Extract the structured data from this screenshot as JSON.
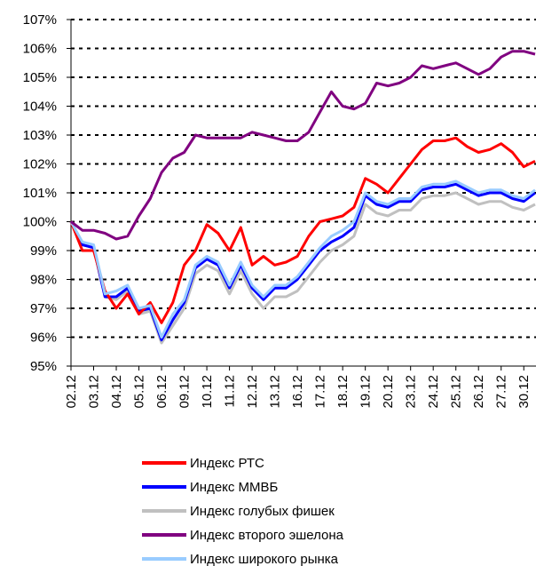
{
  "chart_data": {
    "type": "line",
    "categories": [
      "02.12",
      null,
      "03.12",
      null,
      "04.12",
      null,
      "05.12",
      null,
      "06.12",
      null,
      "09.12",
      null,
      "10.12",
      null,
      "11.12",
      null,
      "12.12",
      null,
      "13.12",
      null,
      "16.12",
      null,
      "17.12",
      null,
      "18.12",
      null,
      "19.12",
      null,
      "20.12",
      null,
      "23.12",
      null,
      "24.12",
      null,
      "25.12",
      null,
      "26.12",
      null,
      "27.12",
      null,
      "30.12",
      null
    ],
    "series": [
      {
        "name": "Индекс РТС",
        "color": "#ff0000",
        "values": [
          100,
          99.0,
          99.0,
          97.6,
          97.0,
          97.5,
          96.8,
          97.2,
          96.5,
          97.2,
          98.5,
          99.0,
          99.9,
          99.6,
          99.0,
          99.8,
          98.5,
          98.8,
          98.5,
          98.6,
          98.8,
          99.5,
          100.0,
          100.1,
          100.2,
          100.5,
          101.5,
          101.3,
          101.0,
          101.5,
          102.0,
          102.5,
          102.8,
          102.8,
          102.9,
          102.6,
          102.4,
          102.5,
          102.7,
          102.4,
          101.9,
          102.1
        ]
      },
      {
        "name": "Индекс ММВБ",
        "color": "#0000ff",
        "values": [
          100,
          99.2,
          99.1,
          97.4,
          97.4,
          97.7,
          96.9,
          97.0,
          95.9,
          96.6,
          97.2,
          98.4,
          98.7,
          98.5,
          97.7,
          98.5,
          97.7,
          97.3,
          97.7,
          97.7,
          98.0,
          98.5,
          99.0,
          99.3,
          99.5,
          99.8,
          100.9,
          100.6,
          100.5,
          100.7,
          100.7,
          101.1,
          101.2,
          101.2,
          101.3,
          101.1,
          100.9,
          101.0,
          101.0,
          100.8,
          100.7,
          101.0
        ]
      },
      {
        "name": "Индекс голубых фишек",
        "color": "#c0c0c0",
        "values": [
          100,
          99.2,
          99.1,
          97.4,
          97.3,
          97.6,
          96.8,
          96.9,
          95.8,
          96.4,
          97.0,
          98.2,
          98.5,
          98.3,
          97.5,
          98.3,
          97.5,
          97.0,
          97.4,
          97.4,
          97.6,
          98.1,
          98.6,
          99.0,
          99.2,
          99.5,
          100.6,
          100.3,
          100.2,
          100.4,
          100.4,
          100.8,
          100.9,
          100.9,
          101.0,
          100.8,
          100.6,
          100.7,
          100.7,
          100.5,
          100.4,
          100.6
        ]
      },
      {
        "name": "Индекс второго эшелона",
        "color": "#800080",
        "values": [
          100,
          99.7,
          99.7,
          99.6,
          99.4,
          99.5,
          100.2,
          100.8,
          101.7,
          102.2,
          102.4,
          103.0,
          102.9,
          102.9,
          102.9,
          102.9,
          103.1,
          103.0,
          102.9,
          102.8,
          102.8,
          103.1,
          103.8,
          104.5,
          104.0,
          103.9,
          104.1,
          104.8,
          104.7,
          104.8,
          105.0,
          105.4,
          105.3,
          105.4,
          105.5,
          105.3,
          105.1,
          105.3,
          105.7,
          105.9,
          105.9,
          105.8
        ]
      },
      {
        "name": "Индекс широкого рынка",
        "color": "#99ccff",
        "values": [
          100,
          99.3,
          99.2,
          97.5,
          97.6,
          97.8,
          97.0,
          97.1,
          96.0,
          96.8,
          97.3,
          98.5,
          98.8,
          98.6,
          97.8,
          98.6,
          97.8,
          97.4,
          97.8,
          97.8,
          98.1,
          98.6,
          99.1,
          99.5,
          99.7,
          100.0,
          101.0,
          100.7,
          100.6,
          100.8,
          100.8,
          101.2,
          101.3,
          101.3,
          101.4,
          101.2,
          101.0,
          101.1,
          101.1,
          100.9,
          100.8,
          101.1
        ]
      }
    ],
    "ylim": [
      95,
      107
    ],
    "yticks": [
      {
        "value": 95,
        "label": "95%"
      },
      {
        "value": 96,
        "label": "96%"
      },
      {
        "value": 97,
        "label": "97%"
      },
      {
        "value": 98,
        "label": "98%"
      },
      {
        "value": 99,
        "label": "99%"
      },
      {
        "value": 100,
        "label": "100%"
      },
      {
        "value": 101,
        "label": "101%"
      },
      {
        "value": 102,
        "label": "102%"
      },
      {
        "value": 103,
        "label": "103%"
      },
      {
        "value": 104,
        "label": "104%"
      },
      {
        "value": 105,
        "label": "105%"
      },
      {
        "value": 106,
        "label": "106%"
      },
      {
        "value": 107,
        "label": "107%"
      }
    ],
    "grid": true,
    "legend": "bottom"
  }
}
